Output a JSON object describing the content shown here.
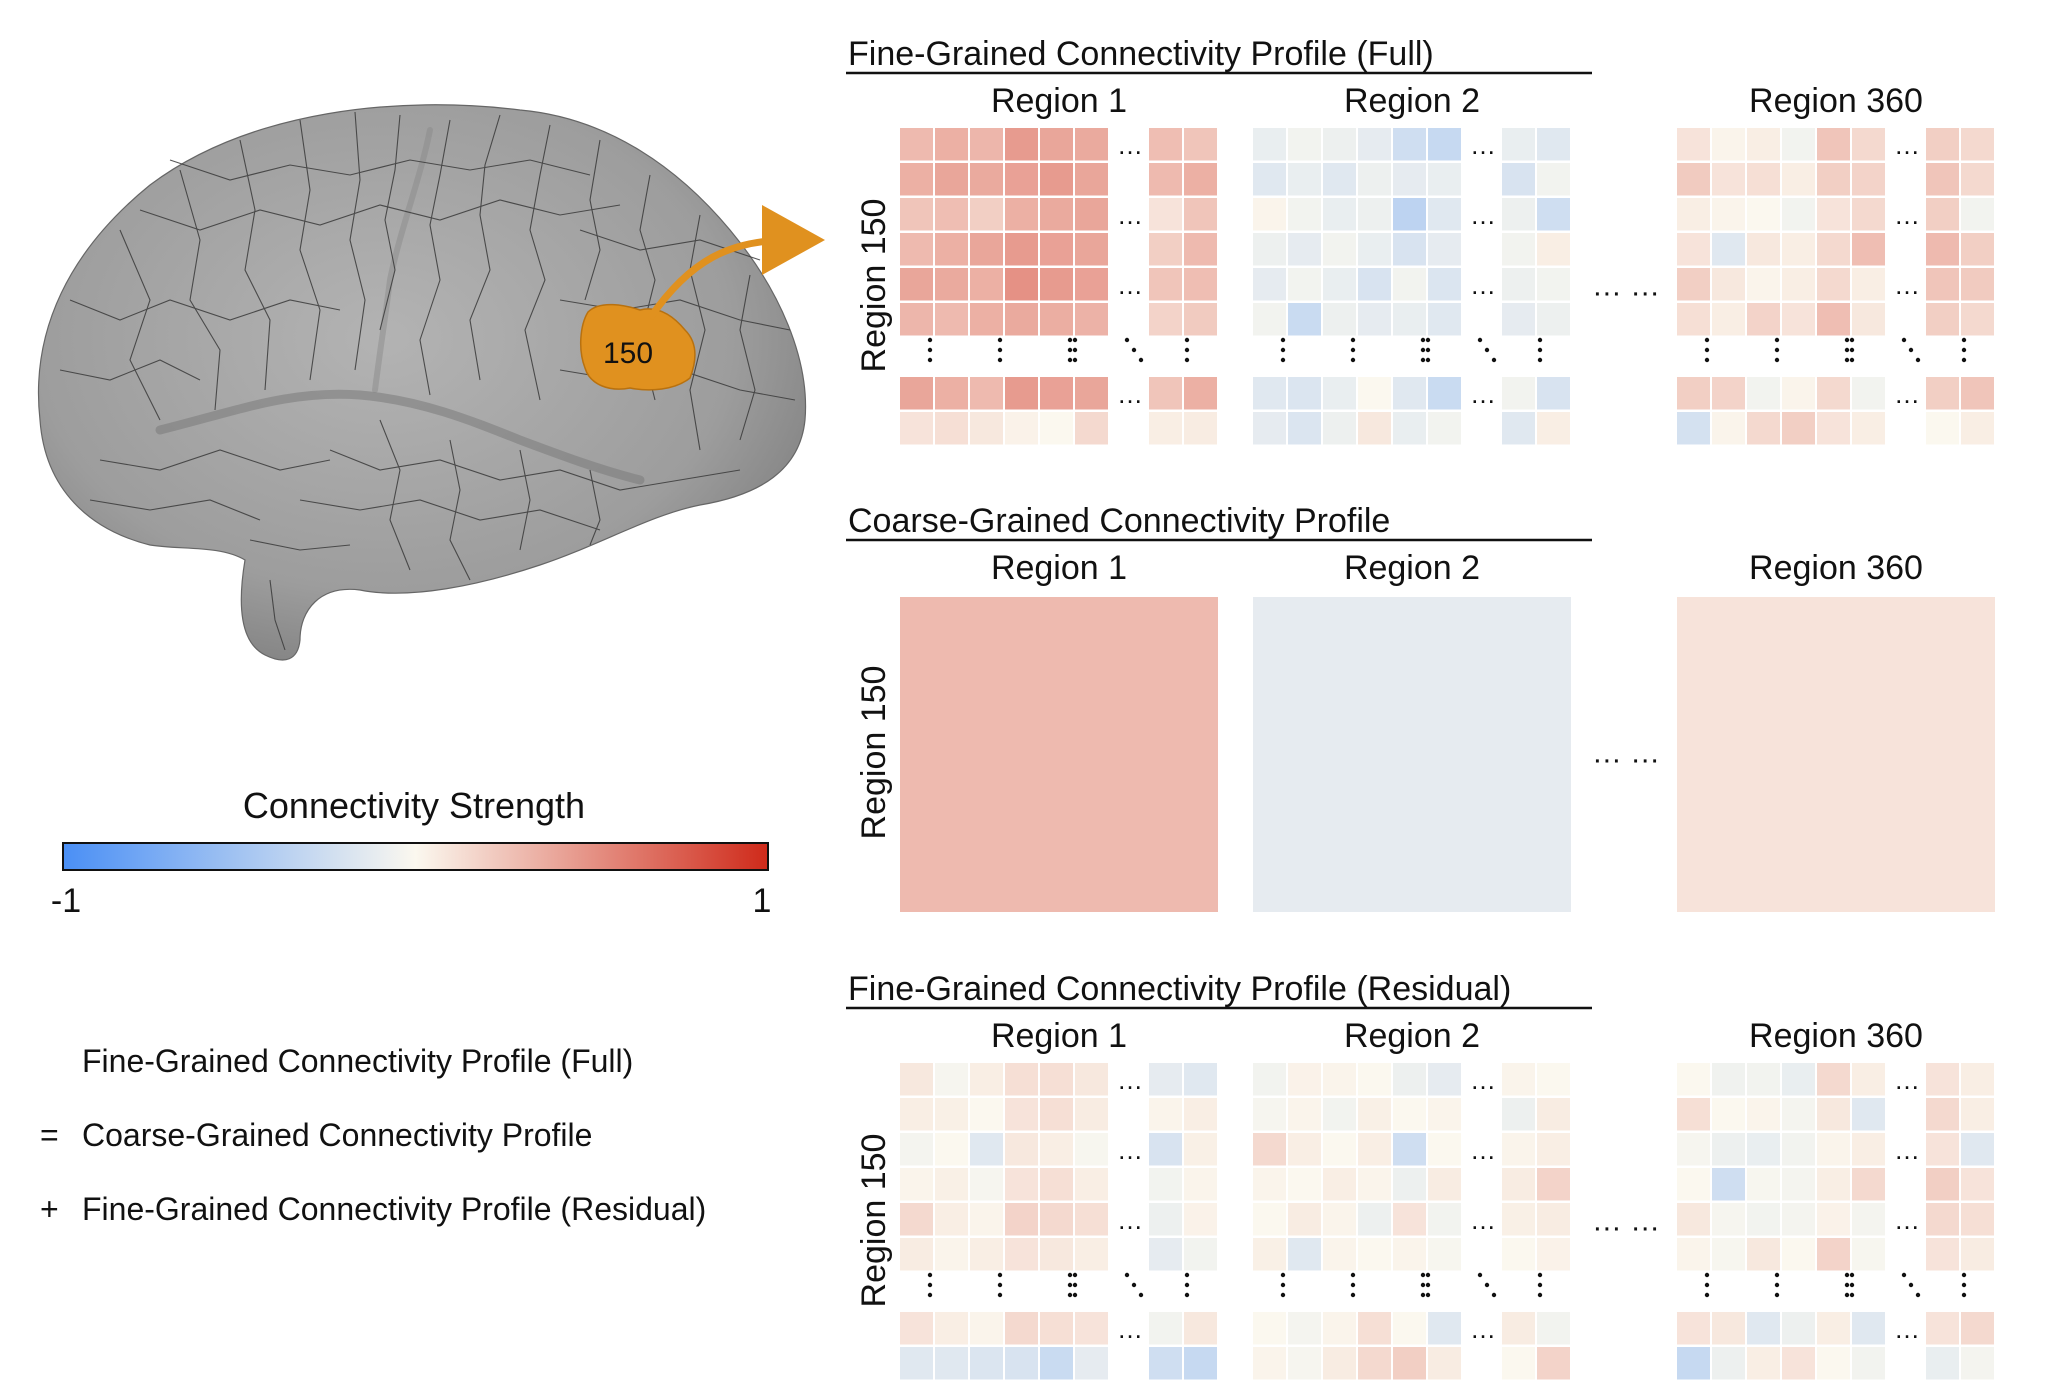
{
  "brain": {
    "region_label": "150",
    "highlight_color": "#E0911F",
    "surface_color": "#9c9c9c"
  },
  "colorbar": {
    "title": "Connectivity Strength",
    "min_label": "-1",
    "max_label": "1",
    "min_color": "#4a8ff5",
    "mid_color": "#fbf8ef",
    "max_color": "#cf2a1a"
  },
  "equation": {
    "line1": "Fine-Grained Connectivity Profile (Full)",
    "op2": "=",
    "line2": "Coarse-Grained Connectivity Profile",
    "op3": "+",
    "line3": "Fine-Grained Connectivity Profile (Residual)"
  },
  "panels": [
    {
      "title": "Fine-Grained Connectivity Profile (Full)",
      "row_label": "Region 150",
      "col_labels": [
        "Region 1",
        "Region 2",
        "Region 360"
      ],
      "between_dots": "… …",
      "kind": "fine",
      "blocks": [
        [
          [
            0.3,
            0.35,
            0.32,
            0.45,
            0.4,
            0.38,
            0.28,
            0.25
          ],
          [
            0.35,
            0.4,
            0.38,
            0.42,
            0.45,
            0.4,
            0.3,
            0.35
          ],
          [
            0.25,
            0.28,
            0.2,
            0.35,
            0.38,
            0.4,
            0.1,
            0.25
          ],
          [
            0.3,
            0.35,
            0.4,
            0.45,
            0.42,
            0.4,
            0.2,
            0.3
          ],
          [
            0.4,
            0.38,
            0.35,
            0.5,
            0.45,
            0.42,
            0.25,
            0.28
          ],
          [
            0.32,
            0.3,
            0.35,
            0.38,
            0.36,
            0.34,
            0.18,
            0.22
          ],
          [
            0.4,
            0.35,
            0.3,
            0.45,
            0.42,
            0.4,
            0.25,
            0.35
          ],
          [
            0.1,
            0.12,
            0.08,
            0.03,
            0.0,
            0.15,
            0.05,
            0.06
          ]
        ],
        [
          [
            -0.1,
            -0.05,
            -0.08,
            -0.12,
            -0.25,
            -0.3,
            -0.1,
            -0.15
          ],
          [
            -0.15,
            -0.1,
            -0.15,
            -0.08,
            -0.12,
            -0.1,
            -0.2,
            -0.05
          ],
          [
            0.02,
            -0.05,
            -0.1,
            -0.08,
            -0.35,
            -0.15,
            -0.08,
            -0.25
          ],
          [
            -0.08,
            -0.12,
            -0.05,
            -0.1,
            -0.2,
            -0.12,
            -0.05,
            0.05
          ],
          [
            -0.12,
            -0.05,
            -0.1,
            -0.2,
            -0.05,
            -0.18,
            -0.08,
            -0.05
          ],
          [
            -0.05,
            -0.28,
            -0.08,
            -0.12,
            -0.1,
            -0.15,
            -0.12,
            -0.08
          ],
          [
            -0.15,
            -0.18,
            -0.1,
            0.0,
            -0.15,
            -0.28,
            -0.05,
            -0.2
          ],
          [
            -0.12,
            -0.18,
            -0.08,
            0.08,
            -0.1,
            -0.05,
            -0.15,
            0.05
          ]
        ],
        [
          [
            0.1,
            0.02,
            0.05,
            -0.05,
            0.25,
            0.15,
            0.2,
            0.15
          ],
          [
            0.22,
            0.1,
            0.12,
            0.05,
            0.2,
            0.18,
            0.25,
            0.15
          ],
          [
            0.05,
            0.02,
            0.0,
            -0.05,
            0.1,
            0.15,
            0.2,
            -0.05
          ],
          [
            0.1,
            -0.15,
            0.08,
            0.05,
            0.15,
            0.28,
            0.3,
            0.2
          ],
          [
            0.2,
            0.08,
            0.02,
            0.05,
            0.15,
            0.05,
            0.25,
            0.22
          ],
          [
            0.12,
            0.05,
            0.18,
            0.1,
            0.28,
            0.08,
            0.2,
            0.15
          ],
          [
            0.2,
            0.18,
            -0.05,
            0.02,
            0.15,
            -0.05,
            0.2,
            0.25
          ],
          [
            -0.22,
            0.02,
            0.15,
            0.2,
            0.1,
            0.05,
            0.0,
            0.05
          ]
        ]
      ]
    },
    {
      "title": "Coarse-Grained Connectivity Profile",
      "row_label": "Region 150",
      "col_labels": [
        "Region 1",
        "Region 2",
        "Region 360"
      ],
      "between_dots": "… …",
      "kind": "coarse",
      "blocks": [
        0.3,
        -0.12,
        0.1
      ]
    },
    {
      "title": "Fine-Grained Connectivity Profile (Residual)",
      "row_label": "Region 150",
      "col_labels": [
        "Region 1",
        "Region 2",
        "Region 360"
      ],
      "between_dots": "… …",
      "kind": "fine",
      "blocks": [
        [
          [
            0.08,
            -0.03,
            0.05,
            0.12,
            0.12,
            0.08,
            -0.12,
            -0.15
          ],
          [
            0.05,
            0.04,
            0.0,
            0.1,
            0.12,
            0.06,
            0.02,
            0.05
          ],
          [
            -0.04,
            0.0,
            -0.15,
            0.08,
            0.05,
            -0.02,
            -0.2,
            0.04
          ],
          [
            0.02,
            0.04,
            -0.03,
            0.1,
            0.12,
            0.05,
            -0.05,
            0.02
          ],
          [
            0.15,
            0.05,
            0.02,
            0.18,
            0.15,
            0.12,
            -0.08,
            0.03
          ],
          [
            0.06,
            0.02,
            0.05,
            0.1,
            0.08,
            0.05,
            -0.12,
            -0.05
          ],
          [
            0.1,
            0.05,
            0.02,
            0.15,
            0.12,
            0.1,
            -0.05,
            0.08
          ],
          [
            -0.15,
            -0.15,
            -0.18,
            -0.2,
            -0.28,
            -0.12,
            -0.25,
            -0.3
          ]
        ],
        [
          [
            -0.05,
            0.03,
            0.02,
            0.0,
            -0.08,
            -0.12,
            0.02,
            0.0
          ],
          [
            -0.03,
            0.02,
            -0.05,
            0.04,
            0.0,
            0.02,
            -0.08,
            0.06
          ],
          [
            0.15,
            0.05,
            0.0,
            0.05,
            -0.25,
            0.0,
            0.02,
            0.05
          ],
          [
            0.02,
            0.0,
            0.05,
            0.02,
            -0.08,
            0.06,
            0.06,
            0.18
          ],
          [
            0.0,
            0.06,
            0.02,
            -0.08,
            0.1,
            -0.05,
            0.04,
            0.06
          ],
          [
            0.04,
            -0.15,
            0.02,
            0.0,
            0.02,
            -0.02,
            0.0,
            0.03
          ],
          [
            0.0,
            -0.04,
            0.02,
            0.12,
            0.0,
            -0.15,
            0.06,
            -0.05
          ],
          [
            0.02,
            -0.03,
            0.06,
            0.15,
            0.2,
            0.06,
            0.0,
            0.18
          ]
        ],
        [
          [
            0.0,
            -0.06,
            -0.05,
            -0.1,
            0.15,
            0.05,
            0.1,
            0.05
          ],
          [
            0.12,
            0.0,
            0.02,
            -0.04,
            0.08,
            -0.15,
            0.15,
            0.05
          ],
          [
            -0.03,
            -0.08,
            -0.1,
            -0.05,
            0.02,
            0.05,
            0.1,
            -0.15
          ],
          [
            0.0,
            -0.25,
            -0.02,
            -0.04,
            0.05,
            0.15,
            0.2,
            0.1
          ],
          [
            0.08,
            -0.03,
            -0.05,
            -0.04,
            0.03,
            -0.04,
            0.15,
            0.12
          ],
          [
            0.02,
            -0.02,
            0.08,
            0.0,
            0.18,
            -0.02,
            0.1,
            0.06
          ],
          [
            0.1,
            0.08,
            -0.15,
            -0.08,
            0.05,
            -0.15,
            0.1,
            0.15
          ],
          [
            -0.3,
            -0.08,
            0.05,
            0.1,
            0.0,
            -0.05,
            -0.1,
            -0.04
          ]
        ]
      ]
    }
  ]
}
